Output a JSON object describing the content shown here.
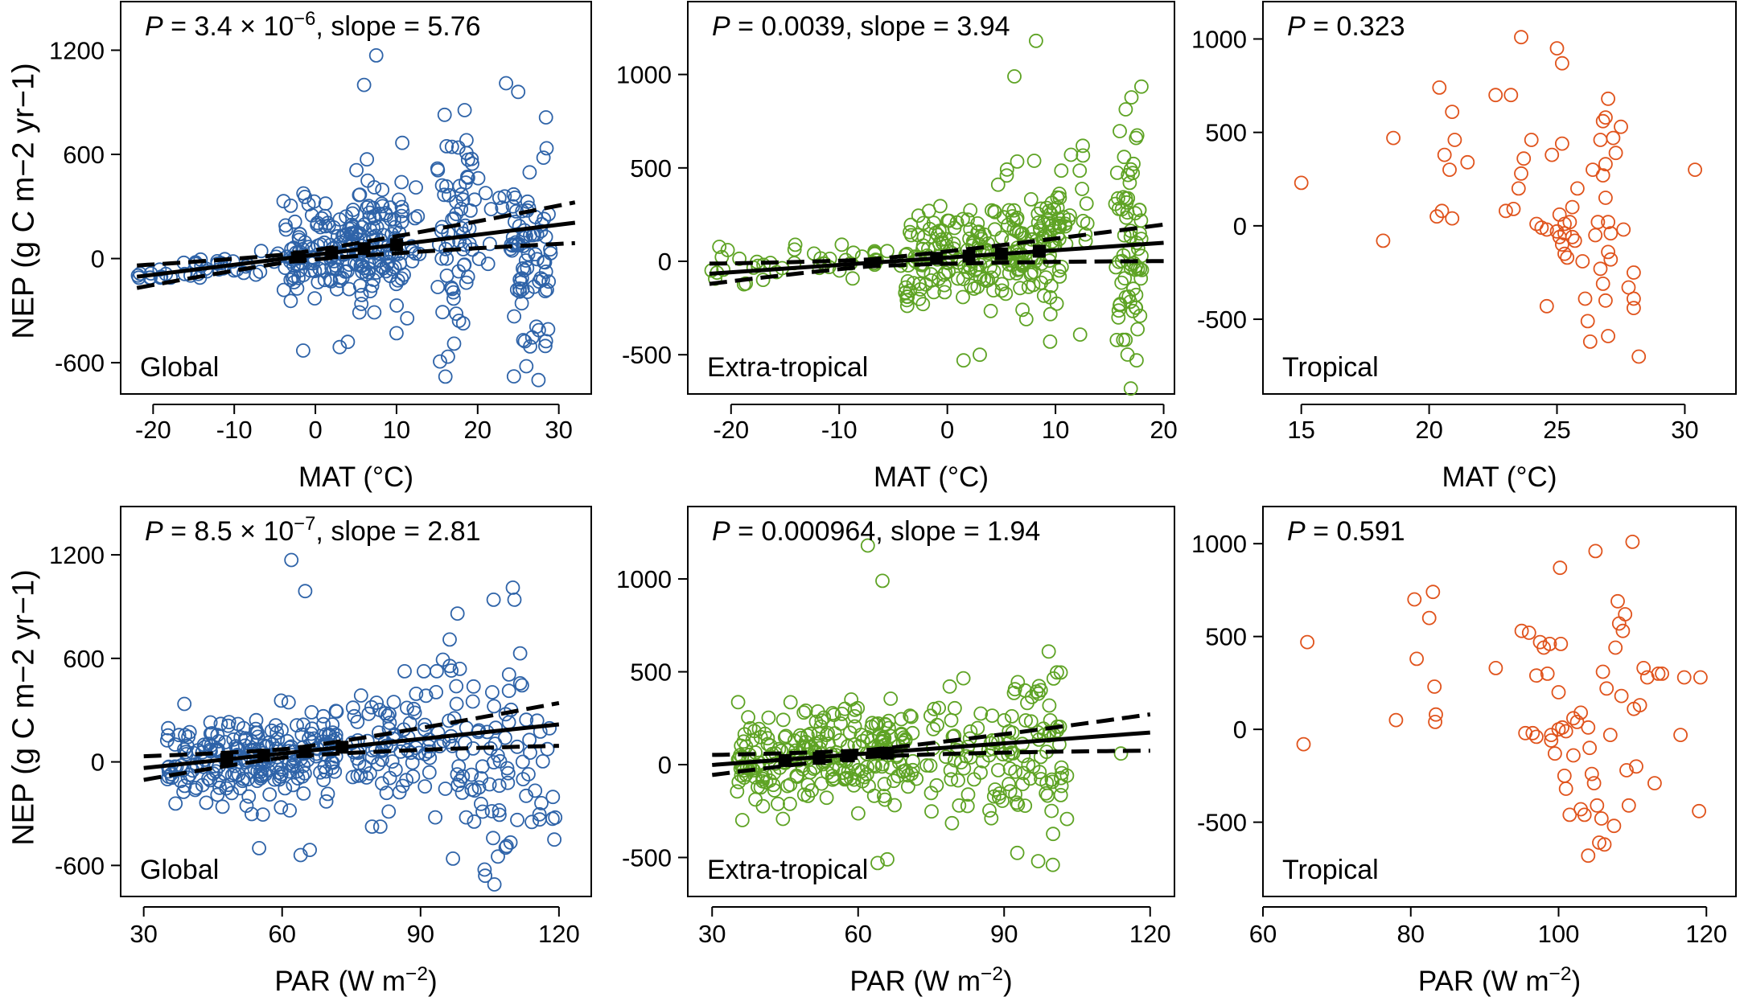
{
  "figure": {
    "y_axis_label": "NEP (g C m−2 yr−1)",
    "colors": {
      "global": "#2e63a8",
      "extratropical": "#5ea324",
      "tropical": "#e0531c",
      "fit": "#000000"
    }
  },
  "chart_data": [
    {
      "type": "scatter",
      "panel": "MAT-Global",
      "region": "Global",
      "stat_label": "P = 3.4 × 10−6, slope = 5.76",
      "stats": {
        "p_value": 3.4e-06,
        "slope": 5.76
      },
      "xlabel": "MAT (°C)",
      "ylabel": "NEP (g C m−2 yr−1)",
      "xlim": [
        -24,
        34
      ],
      "ylim": [
        -780,
        1480
      ],
      "xticks": [
        -20,
        -10,
        0,
        10,
        20,
        30
      ],
      "yticks": [
        -600,
        0,
        600,
        1200
      ],
      "color": "#2e63a8",
      "fit": {
        "slope": 5.76,
        "intercept": 22,
        "x_range": [
          -22,
          32
        ],
        "ci_spread": 90
      },
      "binned_means": {
        "x": [
          -2,
          2,
          6,
          10
        ],
        "y": [
          10,
          34,
          57,
          80
        ]
      },
      "n_points": 420,
      "seed": 11,
      "clusters": [
        {
          "n": 190,
          "x": [
            -4,
            11
          ],
          "y": [
            -250,
            350
          ],
          "mode": "ramp"
        },
        {
          "n": 40,
          "x": [
            -22,
            -4
          ],
          "y": [
            -90,
            110
          ],
          "mode": "ramp"
        },
        {
          "n": 60,
          "x": [
            15,
            19
          ],
          "y": [
            -550,
            750
          ],
          "mode": "spread"
        },
        {
          "n": 70,
          "x": [
            24,
            29
          ],
          "y": [
            -650,
            680
          ],
          "mode": "spread"
        },
        {
          "n": 40,
          "x": [
            5,
            13
          ],
          "y": [
            -300,
            600
          ],
          "mode": "spread"
        },
        {
          "n": 20,
          "x": [
            19,
            26
          ],
          "y": [
            -300,
            600
          ],
          "mode": "spread"
        }
      ],
      "extra_points": [
        [
          6,
          1000
        ],
        [
          7.5,
          1170
        ],
        [
          23.5,
          1010
        ],
        [
          25,
          960
        ],
        [
          -1.5,
          -530
        ],
        [
          3,
          -510
        ],
        [
          4,
          -480
        ],
        [
          10,
          -430
        ],
        [
          27.5,
          -700
        ],
        [
          26,
          -620
        ]
      ]
    },
    {
      "type": "scatter",
      "panel": "MAT-Extratropical",
      "region": "Extra-tropical",
      "stat_label": "P = 0.0039, slope = 3.94",
      "stats": {
        "p_value": 0.0039,
        "slope": 3.94
      },
      "xlabel": "MAT (°C)",
      "ylabel": "",
      "xlim": [
        -24,
        21
      ],
      "ylim": [
        -710,
        1390
      ],
      "xticks": [
        -20,
        -10,
        0,
        10,
        20
      ],
      "yticks": [
        -500,
        0,
        500,
        1000
      ],
      "color": "#5ea324",
      "fit": {
        "slope": 3.94,
        "intercept": 20,
        "x_range": [
          -22,
          20
        ],
        "ci_spread": 75
      },
      "binned_means": {
        "x": [
          -1,
          2,
          5,
          8.5
        ],
        "y": [
          16,
          28,
          40,
          54
        ]
      },
      "n_points": 400,
      "seed": 23,
      "clusters": [
        {
          "n": 210,
          "x": [
            -4,
            11
          ],
          "y": [
            -250,
            350
          ],
          "mode": "ramp"
        },
        {
          "n": 45,
          "x": [
            -22,
            -4
          ],
          "y": [
            -100,
            130
          ],
          "mode": "ramp"
        },
        {
          "n": 70,
          "x": [
            15.5,
            18
          ],
          "y": [
            -550,
            800
          ],
          "mode": "spread"
        },
        {
          "n": 50,
          "x": [
            5,
            13
          ],
          "y": [
            -300,
            620
          ],
          "mode": "spread"
        }
      ],
      "extra_points": [
        [
          6.2,
          990
        ],
        [
          8.2,
          1180
        ],
        [
          1.5,
          -530
        ],
        [
          3,
          -500
        ],
        [
          9.5,
          -430
        ],
        [
          17.5,
          -530
        ]
      ]
    },
    {
      "type": "scatter",
      "panel": "MAT-Tropical",
      "region": "Tropical",
      "stat_label": "P = 0.323",
      "stats": {
        "p_value": 0.323
      },
      "xlabel": "MAT (°C)",
      "ylabel": "",
      "xlim": [
        13.5,
        32
      ],
      "ylim": [
        -900,
        1200
      ],
      "xticks": [
        15,
        20,
        25,
        30
      ],
      "yticks": [
        -500,
        0,
        500,
        1000
      ],
      "color": "#e0531c",
      "points": [
        [
          15.0,
          230
        ],
        [
          18.2,
          -80
        ],
        [
          18.6,
          470
        ],
        [
          20.4,
          740
        ],
        [
          20.6,
          380
        ],
        [
          20.8,
          300
        ],
        [
          21.0,
          460
        ],
        [
          20.9,
          610
        ],
        [
          21.5,
          340
        ],
        [
          20.3,
          50
        ],
        [
          20.5,
          80
        ],
        [
          20.9,
          40
        ],
        [
          22.6,
          700
        ],
        [
          23.2,
          700
        ],
        [
          23.6,
          1010
        ],
        [
          23.0,
          80
        ],
        [
          23.3,
          90
        ],
        [
          23.7,
          360
        ],
        [
          23.6,
          280
        ],
        [
          23.5,
          200
        ],
        [
          24.0,
          460
        ],
        [
          24.2,
          10
        ],
        [
          24.4,
          -10
        ],
        [
          24.6,
          -430
        ],
        [
          25.0,
          950
        ],
        [
          25.2,
          870
        ],
        [
          25.2,
          440
        ],
        [
          24.8,
          380
        ],
        [
          25.0,
          -30
        ],
        [
          25.1,
          -60
        ],
        [
          25.2,
          -100
        ],
        [
          25.3,
          10
        ],
        [
          25.1,
          60
        ],
        [
          25.3,
          -150
        ],
        [
          25.4,
          -170
        ],
        [
          25.5,
          20
        ],
        [
          25.6,
          100
        ],
        [
          25.8,
          200
        ],
        [
          25.7,
          -80
        ],
        [
          26.0,
          -190
        ],
        [
          26.1,
          -390
        ],
        [
          26.2,
          -510
        ],
        [
          26.3,
          -620
        ],
        [
          26.4,
          300
        ],
        [
          26.6,
          20
        ],
        [
          26.7,
          460
        ],
        [
          26.8,
          560
        ],
        [
          26.9,
          580
        ],
        [
          27.0,
          680
        ],
        [
          26.8,
          270
        ],
        [
          26.9,
          150
        ],
        [
          27.0,
          20
        ],
        [
          27.1,
          -40
        ],
        [
          27.0,
          -140
        ],
        [
          26.7,
          -230
        ],
        [
          26.8,
          -310
        ],
        [
          26.9,
          -400
        ],
        [
          27.0,
          -590
        ],
        [
          27.2,
          470
        ],
        [
          27.3,
          390
        ],
        [
          27.5,
          530
        ],
        [
          27.6,
          -20
        ],
        [
          27.8,
          -330
        ],
        [
          28.0,
          -250
        ],
        [
          28.0,
          -390
        ],
        [
          28.0,
          -440
        ],
        [
          28.2,
          -700
        ],
        [
          30.4,
          300
        ],
        [
          25.3,
          -40
        ],
        [
          24.6,
          -20
        ],
        [
          26.5,
          -50
        ],
        [
          26.9,
          330
        ],
        [
          27.1,
          -180
        ],
        [
          25.6,
          -60
        ]
      ]
    },
    {
      "type": "scatter",
      "panel": "PAR-Global",
      "region": "Global",
      "stat_label": "P = 8.5 × 10−7, slope = 2.81",
      "stats": {
        "p_value": 8.5e-07,
        "slope": 2.81
      },
      "xlabel": "PAR (W m−2)",
      "ylabel": "NEP (g C m−2 yr−1)",
      "xlim": [
        25,
        127
      ],
      "ylim": [
        -780,
        1480
      ],
      "xticks": [
        30,
        60,
        90,
        120
      ],
      "yticks": [
        -600,
        0,
        600,
        1200
      ],
      "color": "#2e63a8",
      "fit": {
        "slope": 2.81,
        "intercept": -120,
        "x_range": [
          30,
          120
        ],
        "ci_spread": 95
      },
      "binned_means": {
        "x": [
          48,
          56,
          65,
          73
        ],
        "y": [
          15,
          38,
          60,
          85
        ]
      },
      "n_points": 430,
      "seed": 37,
      "clusters": [
        {
          "n": 230,
          "x": [
            35,
            72
          ],
          "y": [
            -250,
            300
          ],
          "mode": "ramp"
        },
        {
          "n": 80,
          "x": [
            75,
            92
          ],
          "y": [
            -300,
            450
          ],
          "mode": "spread"
        },
        {
          "n": 80,
          "x": [
            93,
            112
          ],
          "y": [
            -600,
            800
          ],
          "mode": "spread"
        },
        {
          "n": 20,
          "x": [
            112,
            120
          ],
          "y": [
            -450,
            300
          ],
          "mode": "spread"
        }
      ],
      "extra_points": [
        [
          62,
          1170
        ],
        [
          65,
          990
        ],
        [
          55,
          -500
        ],
        [
          64,
          -540
        ],
        [
          66,
          -510
        ],
        [
          104,
          -660
        ],
        [
          106,
          -710
        ],
        [
          110,
          1010
        ],
        [
          98,
          860
        ],
        [
          119,
          -450
        ]
      ]
    },
    {
      "type": "scatter",
      "panel": "PAR-Extratropical",
      "region": "Extra-tropical",
      "stat_label": "P = 0.000964, slope = 1.94",
      "stats": {
        "p_value": 0.000964,
        "slope": 1.94
      },
      "xlabel": "PAR (W m−2)",
      "ylabel": "",
      "xlim": [
        25,
        125
      ],
      "ylim": [
        -710,
        1390
      ],
      "xticks": [
        30,
        60,
        90,
        120
      ],
      "yticks": [
        -500,
        0,
        500,
        1000
      ],
      "color": "#5ea324",
      "fit": {
        "slope": 1.94,
        "intercept": -60,
        "x_range": [
          30,
          120
        ],
        "ci_spread": 75
      },
      "binned_means": {
        "x": [
          45,
          52,
          58,
          66
        ],
        "y": [
          22,
          34,
          47,
          62
        ]
      },
      "n_points": 400,
      "seed": 51,
      "clusters": [
        {
          "n": 240,
          "x": [
            35,
            72
          ],
          "y": [
            -250,
            300
          ],
          "mode": "ramp"
        },
        {
          "n": 70,
          "x": [
            74,
            92
          ],
          "y": [
            -250,
            400
          ],
          "mode": "spread"
        },
        {
          "n": 60,
          "x": [
            92,
            103
          ],
          "y": [
            -500,
            700
          ],
          "mode": "spread"
        }
      ],
      "extra_points": [
        [
          62,
          1180
        ],
        [
          65,
          990
        ],
        [
          64,
          -530
        ],
        [
          66,
          -510
        ],
        [
          97,
          -520
        ],
        [
          100,
          -540
        ],
        [
          114,
          60
        ]
      ]
    },
    {
      "type": "scatter",
      "panel": "PAR-Tropical",
      "region": "Tropical",
      "stat_label": "P = 0.591",
      "stats": {
        "p_value": 0.591
      },
      "xlabel": "PAR (W m−2)",
      "ylabel": "",
      "xlim": [
        60,
        124
      ],
      "ylim": [
        -900,
        1200
      ],
      "xticks": [
        60,
        80,
        100,
        120
      ],
      "yticks": [
        -500,
        0,
        500,
        1000
      ],
      "color": "#e0531c",
      "points": [
        [
          65.5,
          -80
        ],
        [
          66.0,
          470
        ],
        [
          78.0,
          50
        ],
        [
          80.5,
          700
        ],
        [
          80.8,
          380
        ],
        [
          82.5,
          600
        ],
        [
          83.0,
          740
        ],
        [
          83.2,
          230
        ],
        [
          83.4,
          80
        ],
        [
          83.3,
          40
        ],
        [
          91.5,
          330
        ],
        [
          95.0,
          530
        ],
        [
          96.0,
          520
        ],
        [
          96.5,
          -20
        ],
        [
          97.0,
          290
        ],
        [
          97.5,
          470
        ],
        [
          98.0,
          440
        ],
        [
          98.5,
          300
        ],
        [
          98.8,
          460
        ],
        [
          99.0,
          -60
        ],
        [
          99.5,
          -130
        ],
        [
          100.0,
          200
        ],
        [
          100.3,
          460
        ],
        [
          100.2,
          870
        ],
        [
          100.5,
          10
        ],
        [
          100.8,
          -250
        ],
        [
          101.0,
          -320
        ],
        [
          101.5,
          -460
        ],
        [
          102.0,
          -140
        ],
        [
          102.5,
          40
        ],
        [
          103.0,
          90
        ],
        [
          103.0,
          -430
        ],
        [
          103.5,
          -460
        ],
        [
          104.0,
          10
        ],
        [
          104.2,
          -100
        ],
        [
          104.5,
          -240
        ],
        [
          104.8,
          -290
        ],
        [
          105.0,
          960
        ],
        [
          105.2,
          -410
        ],
        [
          105.5,
          -610
        ],
        [
          105.8,
          -480
        ],
        [
          106.0,
          310
        ],
        [
          106.5,
          220
        ],
        [
          107.0,
          -30
        ],
        [
          107.5,
          -520
        ],
        [
          107.7,
          440
        ],
        [
          108.0,
          690
        ],
        [
          108.2,
          570
        ],
        [
          108.5,
          180
        ],
        [
          108.7,
          530
        ],
        [
          109.0,
          620
        ],
        [
          109.2,
          -220
        ],
        [
          109.5,
          -410
        ],
        [
          110.0,
          1010
        ],
        [
          110.2,
          110
        ],
        [
          110.5,
          -200
        ],
        [
          111.0,
          130
        ],
        [
          111.5,
          330
        ],
        [
          112.0,
          280
        ],
        [
          113.0,
          -290
        ],
        [
          113.5,
          300
        ],
        [
          114.0,
          300
        ],
        [
          116.5,
          -30
        ],
        [
          117.0,
          280
        ],
        [
          119.0,
          -440
        ],
        [
          119.2,
          280
        ],
        [
          104.0,
          -680
        ],
        [
          106.2,
          -620
        ],
        [
          102.0,
          60
        ],
        [
          100.0,
          0
        ],
        [
          99.0,
          -30
        ],
        [
          101.0,
          -10
        ],
        [
          97.0,
          -40
        ],
        [
          95.5,
          -20
        ]
      ]
    }
  ]
}
